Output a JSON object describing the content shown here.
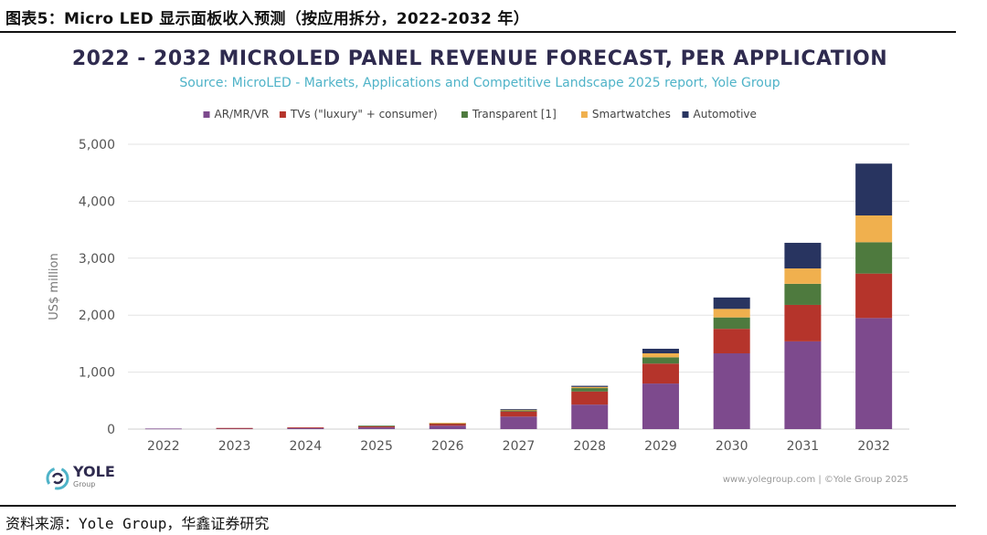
{
  "figure_caption": "图表5：Micro LED 显示面板收入预测（按应用拆分，2022-2032 年）",
  "footer_source": "资料来源：Yole Group，华鑫证券研究",
  "logo": {
    "name": "YOLE",
    "sub": "Group"
  },
  "credits": "www.yolegroup.com | ©Yole Group 2025",
  "colors": {
    "ar_mr_vr": "#7d4a8d",
    "tvs": "#b5342b",
    "transparent": "#4e7a3e",
    "smartwatches": "#f0b04e",
    "automotive": "#283460",
    "title": "#2f2b4f",
    "subtitle": "#4fb3c8",
    "grid": "#e3e3e3",
    "axis_text": "#555555"
  },
  "chart_data": {
    "type": "bar",
    "stacked": true,
    "title": "2022 - 2032 MICROLED PANEL REVENUE FORECAST, PER APPLICATION",
    "subtitle": "Source: MicroLED - Markets, Applications and Competitive Landscape 2025 report, Yole Group",
    "xlabel": "",
    "ylabel": "US$ million",
    "ylim": [
      0,
      5000
    ],
    "yticks": [
      0,
      1000,
      2000,
      3000,
      4000,
      5000
    ],
    "ytick_labels": [
      "0",
      "1,000",
      "2,000",
      "3,000",
      "4,000",
      "5,000"
    ],
    "grid": true,
    "legend_position": "top-center",
    "categories": [
      "2022",
      "2023",
      "2024",
      "2025",
      "2026",
      "2027",
      "2028",
      "2029",
      "2030",
      "2031",
      "2032"
    ],
    "series": [
      {
        "name": "AR/MR/VR",
        "color_key": "ar_mr_vr",
        "values": [
          10,
          15,
          20,
          30,
          60,
          220,
          430,
          800,
          1330,
          1540,
          1950
        ]
      },
      {
        "name": "TVs (\"luxury\" + consumer)",
        "color_key": "tvs",
        "values": [
          0,
          5,
          10,
          25,
          40,
          90,
          230,
          350,
          430,
          640,
          780
        ]
      },
      {
        "name": "Transparent [1]",
        "color_key": "transparent",
        "values": [
          0,
          0,
          0,
          5,
          5,
          20,
          60,
          110,
          200,
          370,
          550
        ]
      },
      {
        "name": "Smartwatches",
        "color_key": "smartwatches",
        "values": [
          0,
          0,
          0,
          0,
          5,
          10,
          20,
          70,
          150,
          270,
          470
        ]
      },
      {
        "name": "Automotive",
        "color_key": "automotive",
        "values": [
          0,
          0,
          0,
          0,
          0,
          10,
          20,
          80,
          200,
          450,
          910
        ]
      }
    ]
  }
}
